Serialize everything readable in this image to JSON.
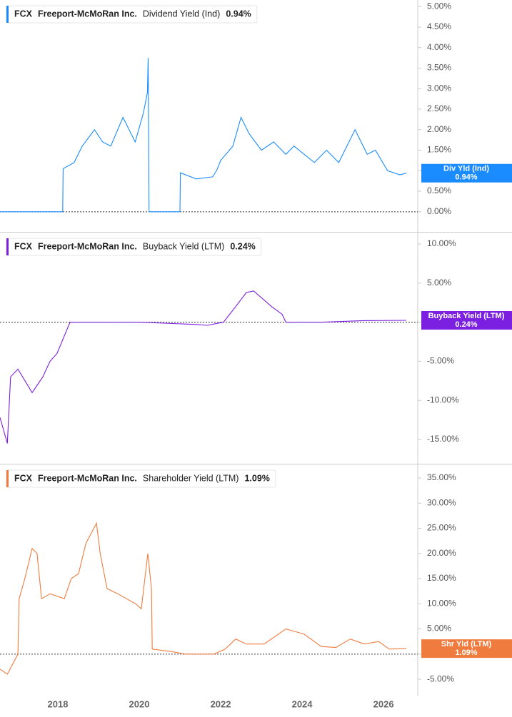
{
  "chart_data": [
    {
      "type": "line",
      "ticker": "FCX",
      "company": "Freeport-McMoRan Inc.",
      "metric": "Dividend Yield (Ind)",
      "last_value_label": "0.94%",
      "tag_label": "Div Yld (Ind)",
      "color": "#1a8cff",
      "zero_line": true,
      "x": [
        2016.58,
        2018.12,
        2018.13,
        2018.4,
        2018.6,
        2018.9,
        2019.1,
        2019.3,
        2019.6,
        2019.9,
        2020.1,
        2020.2,
        2020.22,
        2020.24,
        2021.0,
        2021.01,
        2021.4,
        2021.8,
        2021.9,
        2022.0,
        2022.3,
        2022.5,
        2022.7,
        2023.0,
        2023.3,
        2023.6,
        2023.8,
        2024.3,
        2024.6,
        2024.9,
        2025.1,
        2025.3,
        2025.6,
        2025.8,
        2026.1,
        2026.4,
        2026.56
      ],
      "values": [
        0,
        0,
        1.05,
        1.2,
        1.6,
        2.0,
        1.7,
        1.6,
        2.3,
        1.7,
        2.4,
        2.9,
        3.75,
        0,
        0,
        0.95,
        0.8,
        0.85,
        1.0,
        1.25,
        1.6,
        2.3,
        1.9,
        1.5,
        1.7,
        1.4,
        1.6,
        1.2,
        1.5,
        1.2,
        1.6,
        2.0,
        1.4,
        1.5,
        1.0,
        0.9,
        0.94
      ],
      "xlim": [
        2016.58,
        2026.84
      ],
      "ylim": [
        -0.49,
        5.16
      ],
      "yticks": [
        {
          "value": 0,
          "label": "0.00%"
        },
        {
          "value": 0.5,
          "label": "0.50%"
        },
        {
          "value": 1,
          "label": "1.00%"
        },
        {
          "value": 1.5,
          "label": "1.50%"
        },
        {
          "value": 2,
          "label": "2.00%"
        },
        {
          "value": 2.5,
          "label": "2.50%"
        },
        {
          "value": 3,
          "label": "3.00%"
        },
        {
          "value": 3.5,
          "label": "3.50%"
        },
        {
          "value": 4,
          "label": "4.00%"
        },
        {
          "value": 4.5,
          "label": "4.50%"
        },
        {
          "value": 5,
          "label": "5.00%"
        }
      ]
    },
    {
      "type": "line",
      "ticker": "FCX",
      "company": "Freeport-McMoRan Inc.",
      "metric": "Buyback Yield (LTM)",
      "last_value_label": "0.24%",
      "tag_label": "Buyback Yield (LTM)",
      "color": "#7b1fe0",
      "zero_line": true,
      "x": [
        2016.58,
        2016.76,
        2016.84,
        2017.02,
        2017.37,
        2017.63,
        2017.81,
        2017.98,
        2018.3,
        2020.0,
        2021.44,
        2021.67,
        2022.07,
        2022.37,
        2022.63,
        2022.81,
        2023.25,
        2023.51,
        2023.6,
        2024.5,
        2025.5,
        2026.56
      ],
      "values": [
        -12.2,
        -15.5,
        -7,
        -6,
        -9,
        -7,
        -5,
        -4,
        0,
        0,
        -0.3,
        -0.4,
        0,
        2,
        3.8,
        4,
        2,
        1,
        0,
        0,
        0.2,
        0.24
      ],
      "xlim": [
        2016.58,
        2026.84
      ],
      "ylim": [
        -18.1,
        11.46
      ],
      "yticks": [
        {
          "value": -15,
          "label": "-15.00%"
        },
        {
          "value": -10,
          "label": "-10.00%"
        },
        {
          "value": -5,
          "label": "-5.00%"
        },
        {
          "value": 0,
          "label": "0.00%"
        },
        {
          "value": 5,
          "label": "5.00%"
        },
        {
          "value": 10,
          "label": "10.00%"
        }
      ]
    },
    {
      "type": "line",
      "ticker": "FCX",
      "company": "Freeport-McMoRan Inc.",
      "metric": "Shareholder Yield (LTM)",
      "last_value_label": "1.09%",
      "tag_label": "Shr Yld (LTM)",
      "color": "#f07b3f",
      "zero_line": true,
      "x": [
        2016.58,
        2016.76,
        2017.02,
        2017.05,
        2017.19,
        2017.37,
        2017.49,
        2017.6,
        2017.81,
        2018.16,
        2018.33,
        2018.51,
        2018.69,
        2018.95,
        2019.04,
        2019.21,
        2019.47,
        2019.91,
        2020.05,
        2020.21,
        2020.3,
        2020.32,
        2020.79,
        2021.14,
        2021.84,
        2022.11,
        2022.37,
        2022.63,
        2023.07,
        2023.6,
        2024.04,
        2024.47,
        2024.83,
        2025.18,
        2025.53,
        2025.88,
        2026.14,
        2026.56
      ],
      "values": [
        -3,
        -4,
        0,
        11,
        15,
        21,
        20,
        11,
        12,
        11,
        15,
        16,
        22,
        26,
        20,
        13,
        12,
        10,
        9,
        20,
        13,
        1,
        0.5,
        0,
        0,
        1,
        3,
        2,
        2,
        5,
        4,
        1.5,
        1.3,
        3,
        2,
        2.5,
        1,
        1.09
      ],
      "xlim": [
        2016.58,
        2026.84
      ],
      "ylim": [
        -8.25,
        37.69
      ],
      "yticks": [
        {
          "value": -5,
          "label": "-5.00%"
        },
        {
          "value": 0,
          "label": "0.00%"
        },
        {
          "value": 5,
          "label": "5.00%"
        },
        {
          "value": 10,
          "label": "10.00%"
        },
        {
          "value": 15,
          "label": "15.00%"
        },
        {
          "value": 20,
          "label": "20.00%"
        },
        {
          "value": 25,
          "label": "25.00%"
        },
        {
          "value": 30,
          "label": "30.00%"
        },
        {
          "value": 35,
          "label": "35.00%"
        }
      ],
      "xticks": [
        2018,
        2020,
        2022,
        2024,
        2026
      ]
    }
  ]
}
